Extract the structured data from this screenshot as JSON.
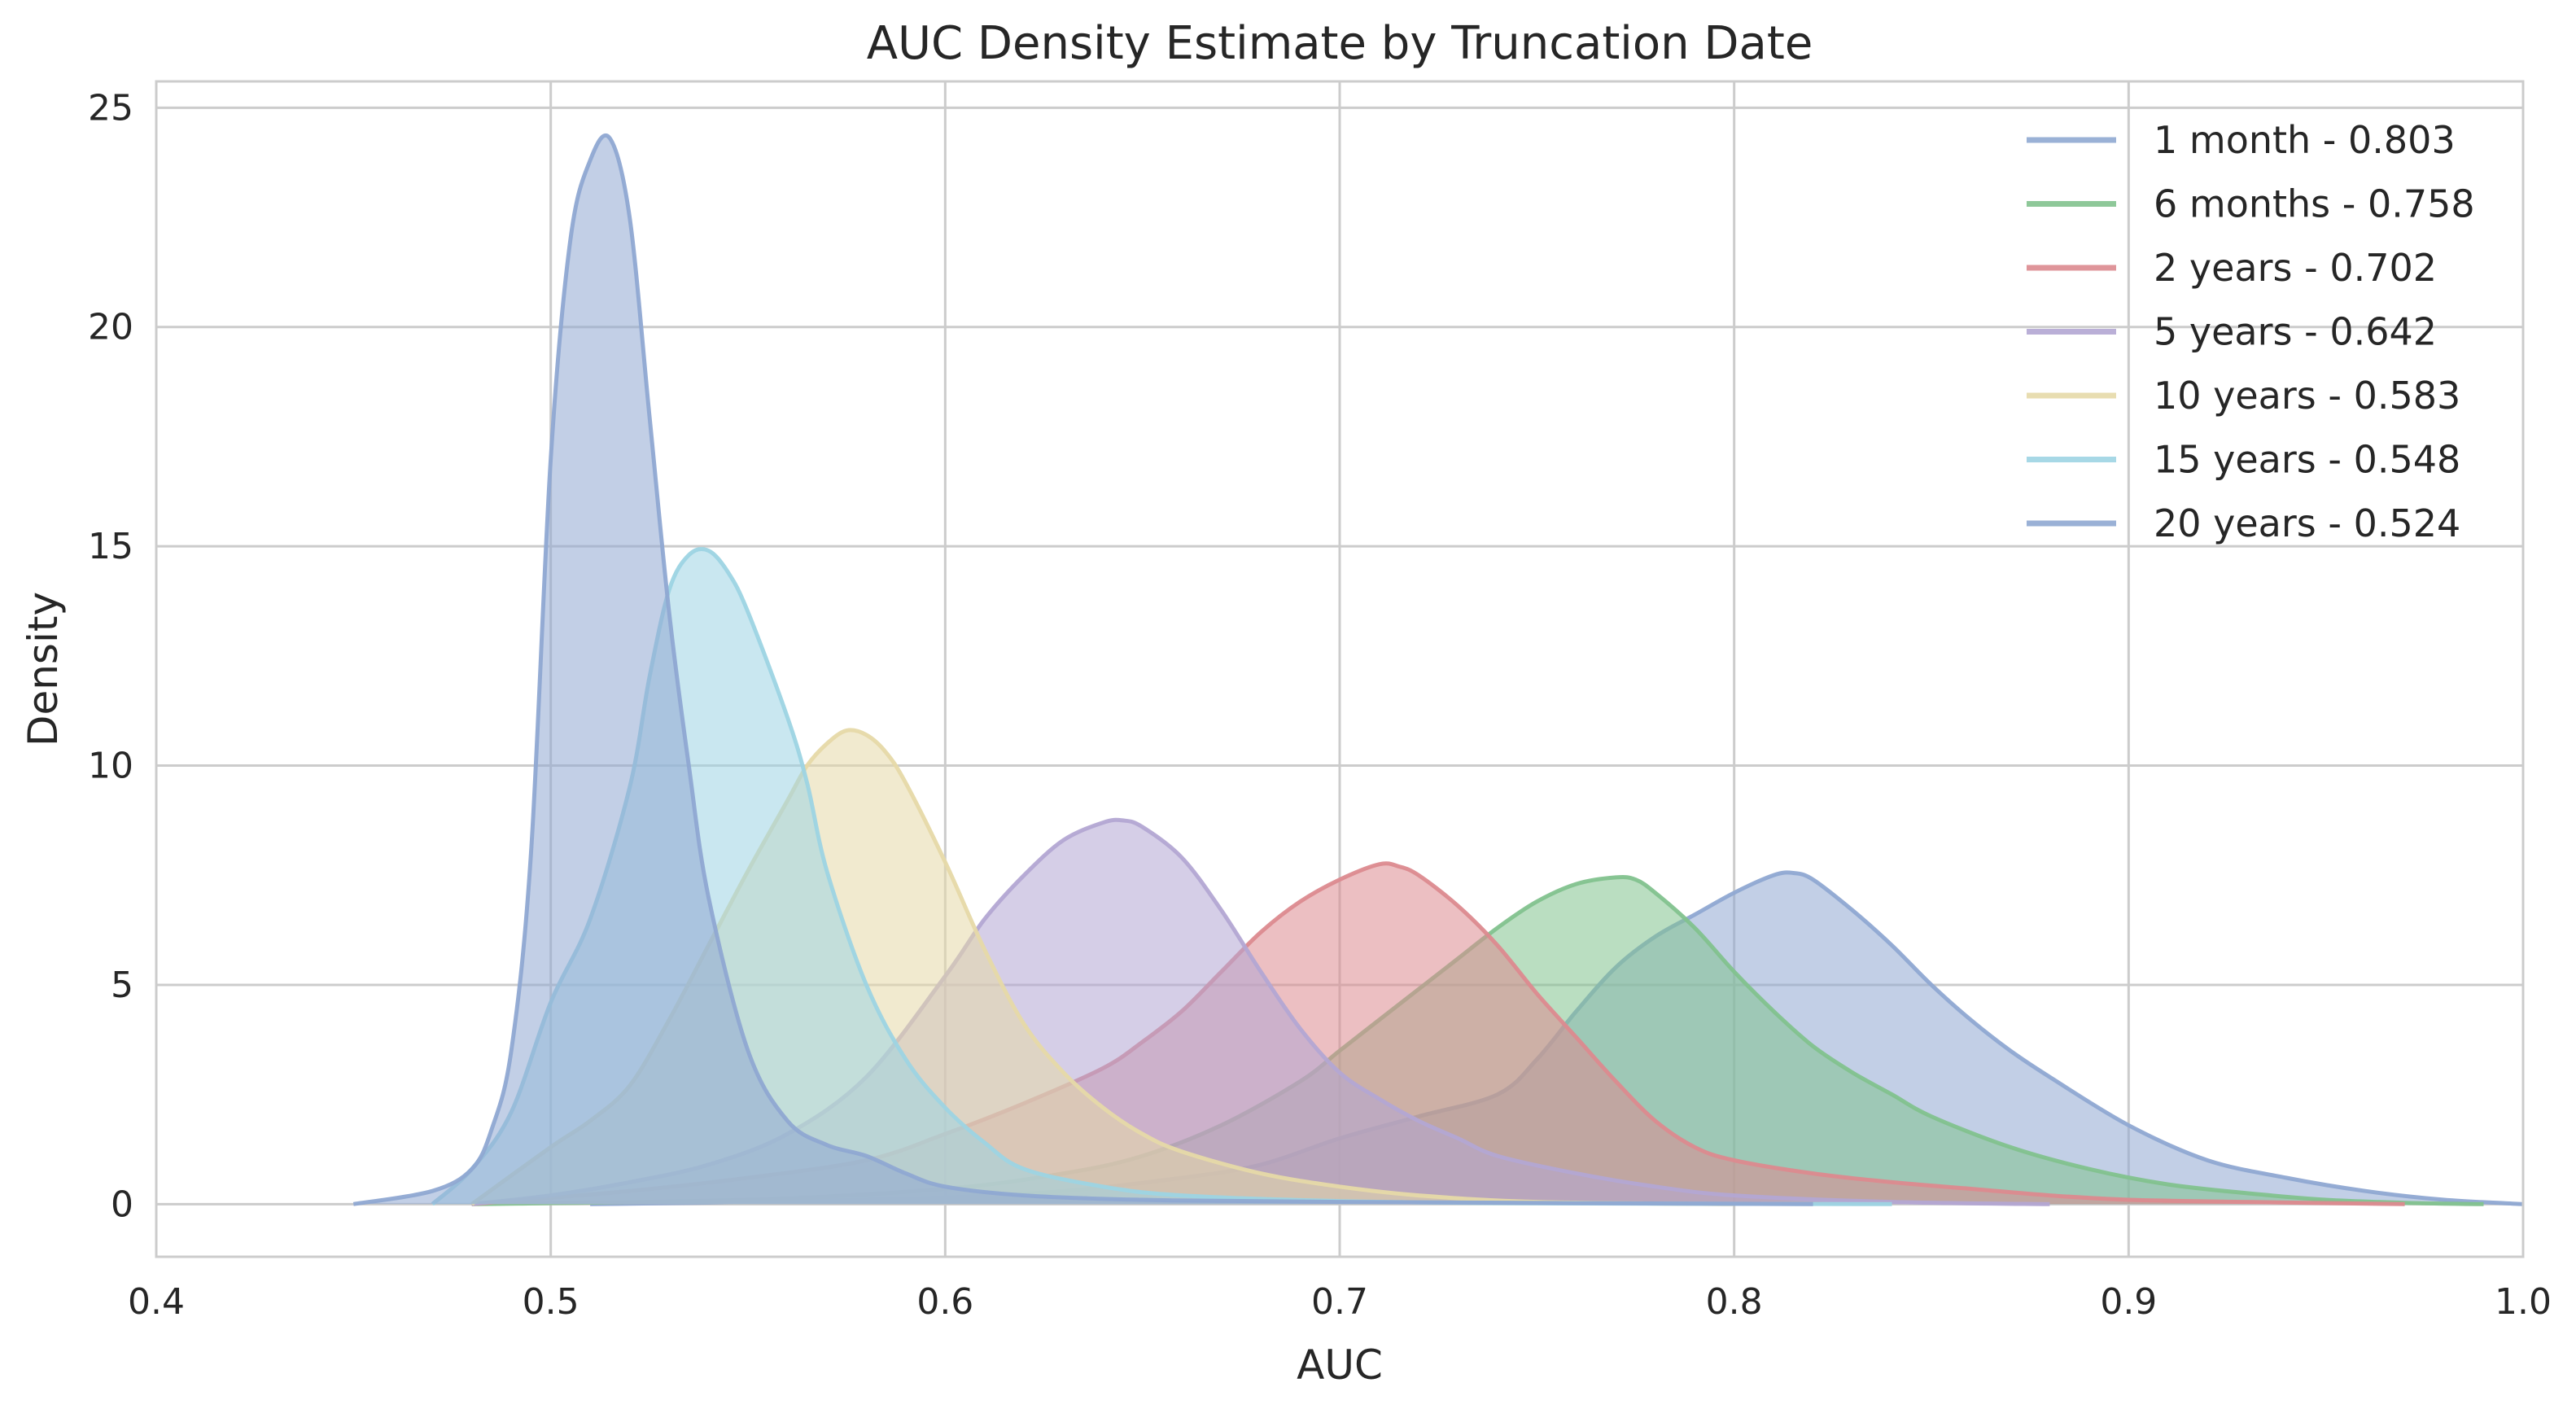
{
  "chart_data": {
    "type": "area",
    "title": "AUC Density Estimate by Truncation Date",
    "xlabel": "AUC",
    "ylabel": "Density",
    "xlim": [
      0.4,
      1.0
    ],
    "ylim": [
      -1.2,
      25.6
    ],
    "xticks": [
      0.4,
      0.5,
      0.6,
      0.7,
      0.8,
      0.9,
      1.0
    ],
    "xtick_labels": [
      "0.4",
      "0.5",
      "0.6",
      "0.7",
      "0.8",
      "0.9",
      "1.0"
    ],
    "yticks": [
      0,
      5,
      10,
      15,
      20,
      25
    ],
    "ytick_labels": [
      "0",
      "5",
      "10",
      "15",
      "20",
      "25"
    ],
    "grid": true,
    "legend_position": "top-right",
    "series": [
      {
        "name": "1 month - 0.803",
        "color": "#8fa8d2",
        "x": [
          0.51,
          0.55,
          0.6,
          0.63,
          0.66,
          0.68,
          0.7,
          0.72,
          0.74,
          0.75,
          0.76,
          0.77,
          0.78,
          0.79,
          0.8,
          0.81,
          0.815,
          0.82,
          0.83,
          0.84,
          0.85,
          0.86,
          0.87,
          0.88,
          0.9,
          0.92,
          0.94,
          0.96,
          0.98,
          1.0
        ],
        "y": [
          0,
          0.05,
          0.15,
          0.3,
          0.6,
          0.9,
          1.5,
          2.0,
          2.5,
          3.3,
          4.4,
          5.4,
          6.1,
          6.6,
          7.1,
          7.5,
          7.55,
          7.4,
          6.7,
          5.9,
          5.0,
          4.2,
          3.5,
          2.9,
          1.8,
          1.0,
          0.6,
          0.3,
          0.1,
          0.0
        ]
      },
      {
        "name": "6 months - 0.758",
        "color": "#82c28e",
        "x": [
          0.48,
          0.55,
          0.6,
          0.63,
          0.65,
          0.67,
          0.69,
          0.7,
          0.71,
          0.72,
          0.73,
          0.74,
          0.75,
          0.76,
          0.77,
          0.775,
          0.78,
          0.79,
          0.8,
          0.81,
          0.82,
          0.83,
          0.84,
          0.85,
          0.87,
          0.89,
          0.91,
          0.93,
          0.95,
          0.97,
          0.99
        ],
        "y": [
          0,
          0.1,
          0.35,
          0.7,
          1.1,
          1.8,
          2.8,
          3.5,
          4.2,
          4.9,
          5.6,
          6.3,
          6.9,
          7.3,
          7.45,
          7.4,
          7.1,
          6.3,
          5.3,
          4.4,
          3.6,
          3.0,
          2.5,
          2.0,
          1.3,
          0.8,
          0.45,
          0.25,
          0.1,
          0.03,
          0.0
        ]
      },
      {
        "name": "2 years - 0.702",
        "color": "#dc8a8f",
        "x": [
          0.48,
          0.52,
          0.55,
          0.58,
          0.6,
          0.62,
          0.64,
          0.65,
          0.66,
          0.67,
          0.68,
          0.69,
          0.7,
          0.71,
          0.715,
          0.72,
          0.73,
          0.74,
          0.75,
          0.76,
          0.77,
          0.78,
          0.79,
          0.8,
          0.82,
          0.84,
          0.86,
          0.88,
          0.9,
          0.93,
          0.97
        ],
        "y": [
          0,
          0.3,
          0.6,
          1.0,
          1.6,
          2.3,
          3.1,
          3.7,
          4.4,
          5.3,
          6.2,
          6.9,
          7.4,
          7.75,
          7.7,
          7.5,
          6.8,
          5.9,
          4.8,
          3.8,
          2.8,
          1.9,
          1.3,
          1.0,
          0.7,
          0.5,
          0.35,
          0.2,
          0.1,
          0.05,
          0.0
        ]
      },
      {
        "name": "5 years - 0.642",
        "color": "#b3a6d3",
        "x": [
          0.48,
          0.5,
          0.52,
          0.54,
          0.56,
          0.58,
          0.6,
          0.61,
          0.62,
          0.63,
          0.64,
          0.645,
          0.65,
          0.66,
          0.67,
          0.68,
          0.69,
          0.7,
          0.71,
          0.72,
          0.73,
          0.74,
          0.76,
          0.78,
          0.8,
          0.84,
          0.88
        ],
        "y": [
          0,
          0.2,
          0.5,
          0.9,
          1.6,
          2.9,
          5.2,
          6.5,
          7.5,
          8.3,
          8.7,
          8.75,
          8.6,
          7.9,
          6.7,
          5.3,
          4.0,
          3.0,
          2.4,
          1.9,
          1.5,
          1.1,
          0.7,
          0.4,
          0.2,
          0.05,
          0.0
        ]
      },
      {
        "name": "10 years - 0.583",
        "color": "#e6d9a8",
        "x": [
          0.48,
          0.5,
          0.51,
          0.52,
          0.53,
          0.54,
          0.55,
          0.56,
          0.565,
          0.57,
          0.575,
          0.58,
          0.585,
          0.59,
          0.6,
          0.61,
          0.62,
          0.63,
          0.64,
          0.65,
          0.66,
          0.68,
          0.7,
          0.72,
          0.75,
          0.8
        ],
        "y": [
          0,
          1.3,
          1.9,
          2.7,
          4.2,
          5.9,
          7.6,
          9.2,
          10.0,
          10.5,
          10.8,
          10.7,
          10.3,
          9.6,
          7.8,
          5.8,
          4.1,
          3.0,
          2.2,
          1.6,
          1.2,
          0.7,
          0.4,
          0.2,
          0.05,
          0.0
        ]
      },
      {
        "name": "15 years - 0.548",
        "color": "#9dd4e3",
        "x": [
          0.47,
          0.48,
          0.49,
          0.5,
          0.51,
          0.52,
          0.525,
          0.53,
          0.535,
          0.54,
          0.545,
          0.55,
          0.56,
          0.565,
          0.57,
          0.58,
          0.59,
          0.6,
          0.61,
          0.62,
          0.64,
          0.66,
          0.7,
          0.75,
          0.84
        ],
        "y": [
          0,
          0.8,
          2.1,
          4.6,
          6.5,
          9.5,
          12.0,
          14.0,
          14.8,
          14.9,
          14.4,
          13.5,
          11.1,
          9.6,
          7.6,
          5.0,
          3.3,
          2.2,
          1.4,
          0.8,
          0.4,
          0.2,
          0.07,
          0.02,
          0.0
        ]
      },
      {
        "name": "20 years - 0.524",
        "color": "#8fa8d2",
        "x": [
          0.45,
          0.47,
          0.48,
          0.485,
          0.49,
          0.495,
          0.5,
          0.505,
          0.51,
          0.515,
          0.52,
          0.525,
          0.53,
          0.535,
          0.54,
          0.55,
          0.56,
          0.57,
          0.58,
          0.59,
          0.6,
          0.62,
          0.65,
          0.7,
          0.82
        ],
        "y": [
          0,
          0.3,
          0.8,
          1.7,
          3.5,
          8.0,
          17.0,
          22.0,
          23.8,
          24.3,
          22.5,
          18.0,
          13.5,
          10.0,
          7.0,
          3.5,
          1.9,
          1.35,
          1.1,
          0.7,
          0.4,
          0.2,
          0.1,
          0.05,
          0.0
        ]
      }
    ]
  }
}
